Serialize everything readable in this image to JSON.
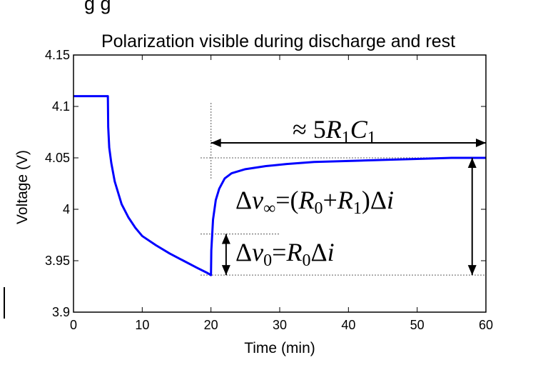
{
  "header_fragment": "g    g",
  "chart_data": {
    "type": "line",
    "title": "Polarization visible during discharge and rest",
    "xlabel": "Time (min)",
    "ylabel": "Voltage (V)",
    "xlim": [
      0,
      60
    ],
    "ylim": [
      3.9,
      4.15
    ],
    "x_ticks": [
      0,
      10,
      20,
      30,
      40,
      50,
      60
    ],
    "y_ticks": [
      3.9,
      3.95,
      4,
      4.05,
      4.1,
      4.15
    ],
    "x_tick_labels": [
      "0",
      "10",
      "20",
      "30",
      "40",
      "50",
      "60"
    ],
    "y_tick_labels": [
      "3.9",
      "3.95",
      "4",
      "4.05",
      "4.1",
      "4.15"
    ],
    "grid": false,
    "series": [
      {
        "color": "#0000ff",
        "x": [
          0,
          5,
          5.05,
          5.2,
          5.5,
          6,
          7,
          8,
          9,
          10,
          12,
          14,
          16,
          18,
          19.5,
          20,
          20.05,
          20.3,
          20.7,
          21.2,
          22,
          23,
          25,
          28,
          31,
          35,
          40,
          45,
          50,
          55,
          60
        ],
        "y": [
          4.11,
          4.11,
          4.08,
          4.06,
          4.045,
          4.027,
          4.005,
          3.992,
          3.982,
          3.974,
          3.965,
          3.957,
          3.95,
          3.943,
          3.938,
          3.936,
          3.96,
          3.99,
          4.009,
          4.02,
          4.03,
          4.035,
          4.039,
          4.042,
          4.044,
          4.046,
          4.047,
          4.048,
          4.049,
          4.05,
          4.05
        ]
      }
    ],
    "annotations": {
      "time_constant": {
        "prefix": "≈ 5",
        "R": "R",
        "R_sub": "1",
        "C": "C",
        "C_sub": "1"
      },
      "steady_state": {
        "lead": "Δ",
        "v": "v",
        "v_sub": "∞",
        "eq": "=(",
        "R0": "R",
        "R0_sub": "0",
        "plus": "+",
        "R1": "R",
        "R1_sub": "1",
        "close": ")Δ",
        "i": "i"
      },
      "instant_drop": {
        "lead": "Δ",
        "v": "v",
        "v_sub": "0",
        "eq": "=",
        "R0": "R",
        "R0_sub": "0",
        "delta": "Δ",
        "i": "i"
      }
    }
  }
}
